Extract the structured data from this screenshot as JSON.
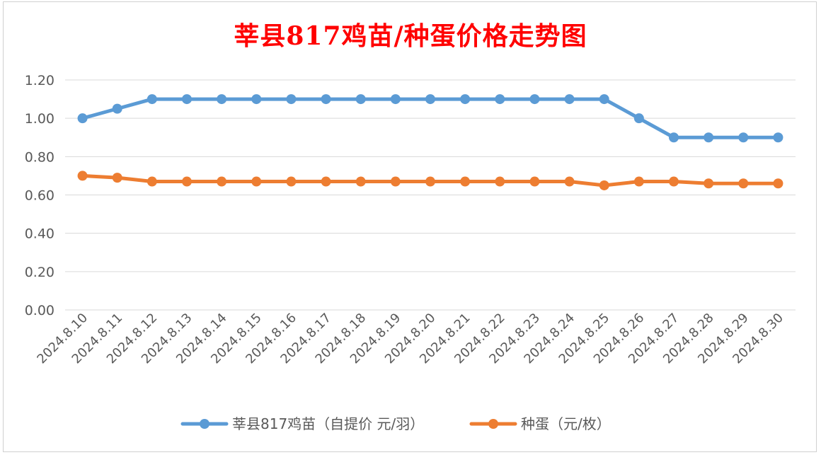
{
  "chart_data": {
    "type": "line",
    "title": "莘县817鸡苗/种蛋价格走势图",
    "categories": [
      "2024.8.10",
      "2024.8.11",
      "2024.8.12",
      "2024.8.13",
      "2024.8.14",
      "2024.8.15",
      "2024.8.16",
      "2024.8.17",
      "2024.8.18",
      "2024.8.19",
      "2024.8.20",
      "2024.8.21",
      "2024.8.22",
      "2024.8.23",
      "2024.8.24",
      "2024.8.25",
      "2024.8.26",
      "2024.8.27",
      "2024.8.28",
      "2024.8.29",
      "2024.8.30"
    ],
    "series": [
      {
        "name": "莘县817鸡苗（自提价 元/羽）",
        "color": "#5b9bd5",
        "values": [
          1.0,
          1.05,
          1.1,
          1.1,
          1.1,
          1.1,
          1.1,
          1.1,
          1.1,
          1.1,
          1.1,
          1.1,
          1.1,
          1.1,
          1.1,
          1.1,
          1.0,
          0.9,
          0.9,
          0.9,
          0.9
        ]
      },
      {
        "name": "种蛋（元/枚）",
        "color": "#ed7d31",
        "values": [
          0.7,
          0.69,
          0.67,
          0.67,
          0.67,
          0.67,
          0.67,
          0.67,
          0.67,
          0.67,
          0.67,
          0.67,
          0.67,
          0.67,
          0.67,
          0.65,
          0.67,
          0.67,
          0.66,
          0.66,
          0.66
        ]
      }
    ],
    "ylim": [
      0,
      1.2
    ],
    "yticks": [
      "0.00",
      "0.20",
      "0.40",
      "0.60",
      "0.80",
      "1.00",
      "1.20"
    ],
    "grid": true,
    "legend": "bottom"
  }
}
